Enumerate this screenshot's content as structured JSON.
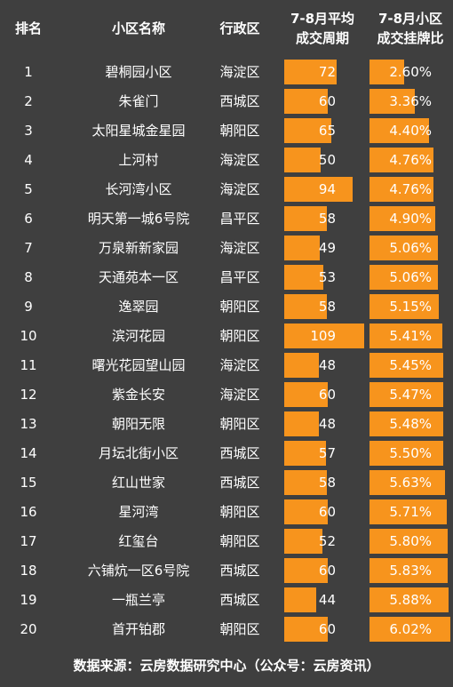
{
  "header": {
    "rank": "排名",
    "name": "小区名称",
    "district": "行政区",
    "cycle_line1": "7-8月平均",
    "cycle_line2": "成交周期",
    "ratio_line1": "7-8月小区",
    "ratio_line2": "成交挂牌比"
  },
  "chart_data": {
    "type": "table",
    "bar_color": "#f7941d",
    "background": "#3f3f3f",
    "columns": [
      "排名",
      "小区名称",
      "行政区",
      "7-8月平均成交周期",
      "7-8月小区成交挂牌比"
    ],
    "rows": [
      {
        "rank": "1",
        "name": "碧桐园小区",
        "district": "海淀区",
        "cycle": 72,
        "ratio": 2.6,
        "ratio_text": "2.60%"
      },
      {
        "rank": "2",
        "name": "朱雀门",
        "district": "西城区",
        "cycle": 60,
        "ratio": 3.36,
        "ratio_text": "3.36%"
      },
      {
        "rank": "3",
        "name": "太阳星城金星园",
        "district": "朝阳区",
        "cycle": 65,
        "ratio": 4.4,
        "ratio_text": "4.40%"
      },
      {
        "rank": "4",
        "name": "上河村",
        "district": "海淀区",
        "cycle": 50,
        "ratio": 4.76,
        "ratio_text": "4.76%"
      },
      {
        "rank": "5",
        "name": "长河湾小区",
        "district": "海淀区",
        "cycle": 94,
        "ratio": 4.76,
        "ratio_text": "4.76%"
      },
      {
        "rank": "6",
        "name": "明天第一城6号院",
        "district": "昌平区",
        "cycle": 58,
        "ratio": 4.9,
        "ratio_text": "4.90%"
      },
      {
        "rank": "7",
        "name": "万泉新新家园",
        "district": "海淀区",
        "cycle": 49,
        "ratio": 5.06,
        "ratio_text": "5.06%"
      },
      {
        "rank": "8",
        "name": "天通苑本一区",
        "district": "昌平区",
        "cycle": 53,
        "ratio": 5.06,
        "ratio_text": "5.06%"
      },
      {
        "rank": "9",
        "name": "逸翠园",
        "district": "朝阳区",
        "cycle": 58,
        "ratio": 5.15,
        "ratio_text": "5.15%"
      },
      {
        "rank": "10",
        "name": "滨河花园",
        "district": "朝阳区",
        "cycle": 109,
        "ratio": 5.41,
        "ratio_text": "5.41%"
      },
      {
        "rank": "11",
        "name": "曙光花园望山园",
        "district": "海淀区",
        "cycle": 48,
        "ratio": 5.45,
        "ratio_text": "5.45%"
      },
      {
        "rank": "12",
        "name": "紫金长安",
        "district": "海淀区",
        "cycle": 60,
        "ratio": 5.47,
        "ratio_text": "5.47%"
      },
      {
        "rank": "13",
        "name": "朝阳无限",
        "district": "朝阳区",
        "cycle": 48,
        "ratio": 5.48,
        "ratio_text": "5.48%"
      },
      {
        "rank": "14",
        "name": "月坛北街小区",
        "district": "西城区",
        "cycle": 57,
        "ratio": 5.5,
        "ratio_text": "5.50%"
      },
      {
        "rank": "15",
        "name": "红山世家",
        "district": "西城区",
        "cycle": 58,
        "ratio": 5.63,
        "ratio_text": "5.63%"
      },
      {
        "rank": "16",
        "name": "星河湾",
        "district": "朝阳区",
        "cycle": 60,
        "ratio": 5.71,
        "ratio_text": "5.71%"
      },
      {
        "rank": "17",
        "name": "红玺台",
        "district": "朝阳区",
        "cycle": 52,
        "ratio": 5.8,
        "ratio_text": "5.80%"
      },
      {
        "rank": "18",
        "name": "六铺炕一区6号院",
        "district": "西城区",
        "cycle": 60,
        "ratio": 5.83,
        "ratio_text": "5.83%"
      },
      {
        "rank": "19",
        "name": "一瓶兰亭",
        "district": "西城区",
        "cycle": 44,
        "ratio": 5.88,
        "ratio_text": "5.88%"
      },
      {
        "rank": "20",
        "name": "首开铂郡",
        "district": "朝阳区",
        "cycle": 60,
        "ratio": 6.02,
        "ratio_text": "6.02%"
      }
    ]
  },
  "footer": {
    "source": "数据来源：云房数据研究中心（公众号：云房资讯）"
  }
}
